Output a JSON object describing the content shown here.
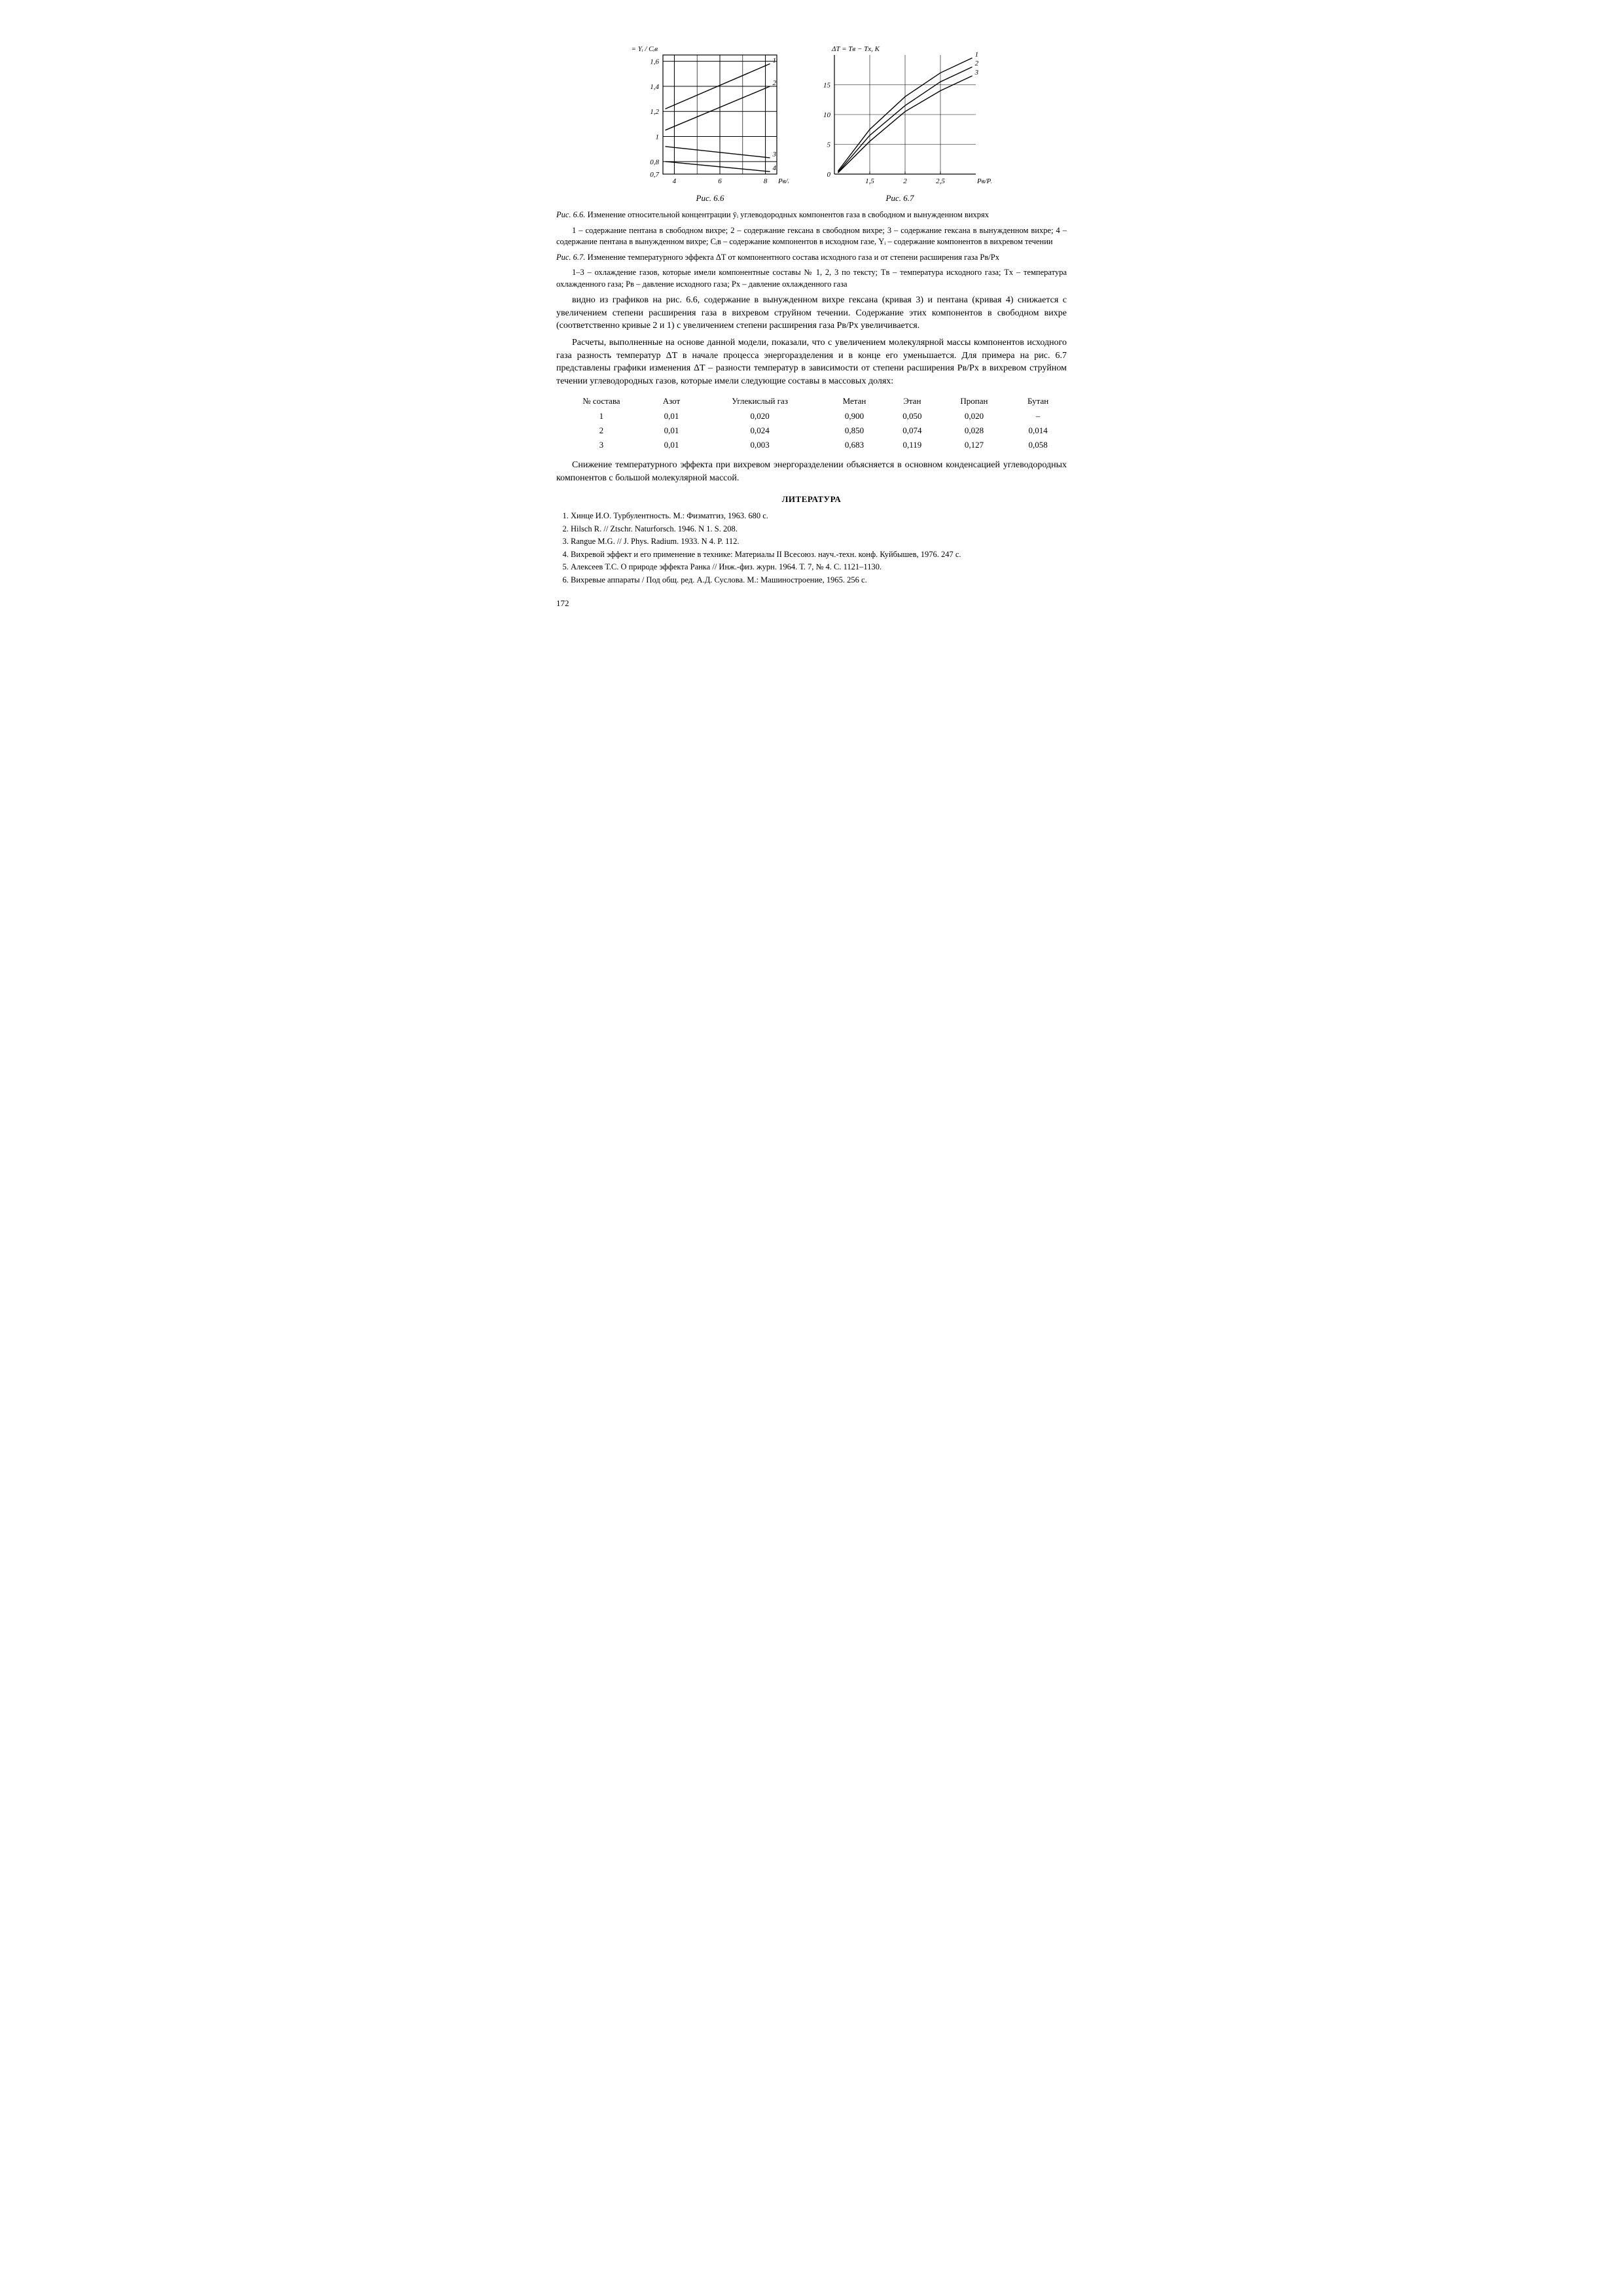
{
  "chart66": {
    "type": "line",
    "xlim": [
      3.5,
      8.5
    ],
    "ylim": [
      0.7,
      1.65
    ],
    "yticks": [
      0.7,
      0.8,
      1.0,
      1.2,
      1.4,
      1.6
    ],
    "xticks": [
      4,
      6,
      8
    ],
    "grid_color": "#000000",
    "line_color": "#000000",
    "bg": "#ffffff",
    "ylabel_math": "ȳᵢ = Yᵢ / Cᵢв",
    "xlabel": "Pв/Pх",
    "curves": [
      {
        "label": "1",
        "pts": [
          [
            3.6,
            1.22
          ],
          [
            8.2,
            1.58
          ]
        ]
      },
      {
        "label": "2",
        "pts": [
          [
            3.6,
            1.05
          ],
          [
            8.2,
            1.4
          ]
        ]
      },
      {
        "label": "3",
        "pts": [
          [
            3.6,
            0.92
          ],
          [
            8.2,
            0.83
          ]
        ]
      },
      {
        "label": "4",
        "pts": [
          [
            3.6,
            0.8
          ],
          [
            8.2,
            0.72
          ]
        ]
      }
    ],
    "caption": "Рис. 6.6"
  },
  "chart67": {
    "type": "line",
    "xlim": [
      1.0,
      3.0
    ],
    "ylim": [
      0,
      20
    ],
    "yticks": [
      0,
      5,
      10,
      15
    ],
    "xticks": [
      1.5,
      2.0,
      2.5
    ],
    "grid_color": "#000000",
    "line_color": "#000000",
    "bg": "#ffffff",
    "ylabel": "ΔT = Tв − Tх, K",
    "xlabel": "Pв/Pх",
    "curves": [
      {
        "label": "1",
        "pts": [
          [
            1.05,
            0.5
          ],
          [
            1.5,
            7.5
          ],
          [
            2.0,
            13.0
          ],
          [
            2.5,
            17.0
          ],
          [
            2.95,
            19.5
          ]
        ]
      },
      {
        "label": "2",
        "pts": [
          [
            1.05,
            0.3
          ],
          [
            1.5,
            6.5
          ],
          [
            2.0,
            11.5
          ],
          [
            2.5,
            15.5
          ],
          [
            2.95,
            18.0
          ]
        ]
      },
      {
        "label": "3",
        "pts": [
          [
            1.05,
            0.2
          ],
          [
            1.5,
            5.5
          ],
          [
            2.0,
            10.5
          ],
          [
            2.5,
            14.0
          ],
          [
            2.95,
            16.5
          ]
        ]
      }
    ],
    "caption": "Рис. 6.7"
  },
  "fig66_desc_lead": "Рис. 6.6.",
  "fig66_desc": "Изменение относительной концентрации ȳᵢ углеводородных компонентов газа в свободном и вынужденном вихрях",
  "fig66_legend": "1 – содержание пентана в свободном вихре; 2 – содержание гексана в свободном вихре; 3 – содержание гексана в вынужденном вихре; 4 – содержание пентана в вынужденном вихре; Cᵢв – содержание компонентов в исходном газе, Yᵢ – содержание компонентов в вихревом течении",
  "fig67_desc_lead": "Рис. 6.7.",
  "fig67_desc": "Изменение температурного эффекта ΔT от компонентного состава исходного газа и от степени расширения газа Pв/Pх",
  "fig67_legend": "1–3 – охлаждение газов, которые имели компонентные составы № 1, 2, 3 по тексту; Tв – температура исходного газа; Tх – температура охлажденного газа; Pв – давление исходного газа; Pх – давление охлажденного газа",
  "para1": "видно из графиков на рис. 6.6, содержание в вынужденном вихре гексана (кривая 3) и пентана (кривая 4) снижается с увеличением степени расширения газа в вихревом струйном течении. Содержание этих компонентов в свободном вихре (соответственно кривые 2 и 1) с увеличением степени расширения газа Pв/Pх увеличивается.",
  "para2": "Расчеты, выполненные на основе данной модели, показали, что с увеличением молекулярной массы компонентов исходного газа разность температур ΔT в начале процесса энергоразделения и в конце его уменьшается. Для примера на рис. 6.7 представлены графики изменения ΔT – разности температур в зависимости от степени расширения Pв/Pх в вихревом струйном течении углеводородных газов, которые имели следующие составы в массовых долях:",
  "table": {
    "columns": [
      "№ состава",
      "Азот",
      "Углекислый газ",
      "Метан",
      "Этан",
      "Пропан",
      "Бутан"
    ],
    "rows": [
      [
        "1",
        "0,01",
        "0,020",
        "0,900",
        "0,050",
        "0,020",
        "–"
      ],
      [
        "2",
        "0,01",
        "0,024",
        "0,850",
        "0,074",
        "0,028",
        "0,014"
      ],
      [
        "3",
        "0,01",
        "0,003",
        "0,683",
        "0,119",
        "0,127",
        "0,058"
      ]
    ]
  },
  "para3": "Снижение температурного эффекта при вихревом энергоразделении объясняется в основном конденсацией углеводородных компонентов с большой молекулярной массой.",
  "lit_heading": "ЛИТЕРАТУРА",
  "refs": [
    "Хинце И.О. Турбулентность. М.: Физматгиз, 1963. 680 с.",
    "Hilsch R. // Ztschr. Naturforsch. 1946. N 1. S. 208.",
    "Rangue M.G. // J. Phys. Radium. 1933. N 4. P. 112.",
    "Вихревой эффект и его применение в технике: Материалы II Всесоюз. науч.-техн. конф. Куйбышев, 1976. 247 с.",
    "Алексеев Т.С. О природе эффекта Ранка // Инж.-физ. журн. 1964. Т. 7, № 4. С. 1121–1130.",
    "Вихревые аппараты / Под общ. ред. А.Д. Суслова. М.: Машиностроение, 1965. 256 с."
  ],
  "page_number": "172"
}
